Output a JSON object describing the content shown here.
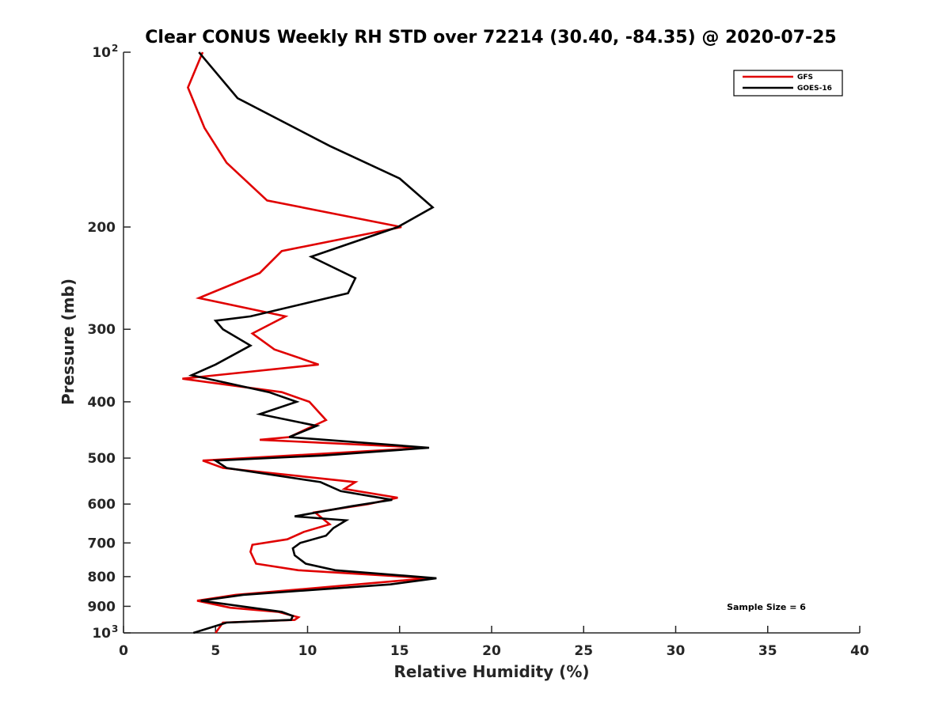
{
  "chart_data": {
    "type": "line",
    "title": "Clear CONUS Weekly RH STD over 72214 (30.40, -84.35) @ 2020-07-25",
    "xlabel": "Relative Humidity (%)",
    "ylabel": "Pressure (mb)",
    "xlim": [
      0,
      40
    ],
    "ylim": [
      100,
      1000
    ],
    "yscale": "log",
    "yreversed": true,
    "x_ticks": [
      "0",
      "5",
      "10",
      "15",
      "20",
      "25",
      "30",
      "35",
      "40"
    ],
    "y_ticks": [
      {
        "value": 100,
        "label": "10",
        "sup": "2"
      },
      {
        "value": 200,
        "label": "200"
      },
      {
        "value": 300,
        "label": "300"
      },
      {
        "value": 400,
        "label": "400"
      },
      {
        "value": 500,
        "label": "500"
      },
      {
        "value": 600,
        "label": "600"
      },
      {
        "value": 700,
        "label": "700"
      },
      {
        "value": 800,
        "label": "800"
      },
      {
        "value": 900,
        "label": "900"
      },
      {
        "value": 1000,
        "label": "10",
        "sup": "3"
      }
    ],
    "legend_position": "top-right",
    "annotation": "Sample Size = 6",
    "series": [
      {
        "name": "GFS",
        "color": "#e00000",
        "points": [
          [
            4.3,
            100
          ],
          [
            3.5,
            115
          ],
          [
            4.4,
            135
          ],
          [
            5.6,
            155
          ],
          [
            7.8,
            180
          ],
          [
            15.1,
            200
          ],
          [
            8.6,
            220
          ],
          [
            7.4,
            240
          ],
          [
            4.1,
            265
          ],
          [
            8.8,
            285
          ],
          [
            7.0,
            305
          ],
          [
            8.2,
            325
          ],
          [
            10.6,
            345
          ],
          [
            3.2,
            365
          ],
          [
            8.6,
            385
          ],
          [
            10.1,
            400
          ],
          [
            11.0,
            430
          ],
          [
            9.0,
            460
          ],
          [
            7.4,
            465
          ],
          [
            16.4,
            480
          ],
          [
            4.3,
            505
          ],
          [
            5.4,
            520
          ],
          [
            12.6,
            550
          ],
          [
            12.0,
            565
          ],
          [
            14.9,
            585
          ],
          [
            13.3,
            600
          ],
          [
            10.4,
            620
          ],
          [
            11.2,
            650
          ],
          [
            9.8,
            670
          ],
          [
            8.9,
            690
          ],
          [
            7.0,
            705
          ],
          [
            6.9,
            725
          ],
          [
            7.2,
            760
          ],
          [
            9.5,
            780
          ],
          [
            16.6,
            805
          ],
          [
            6.1,
            860
          ],
          [
            4.0,
            880
          ],
          [
            5.8,
            905
          ],
          [
            8.4,
            920
          ],
          [
            9.5,
            940
          ],
          [
            9.3,
            950
          ],
          [
            5.4,
            960
          ],
          [
            5.0,
            1000
          ]
        ]
      },
      {
        "name": "GOES-16",
        "color": "#000000",
        "points": [
          [
            4.1,
            100
          ],
          [
            6.2,
            120
          ],
          [
            11.2,
            145
          ],
          [
            15.0,
            165
          ],
          [
            16.8,
            185
          ],
          [
            14.9,
            200
          ],
          [
            10.2,
            225
          ],
          [
            12.6,
            245
          ],
          [
            12.2,
            260
          ],
          [
            6.9,
            285
          ],
          [
            5.0,
            290
          ],
          [
            5.4,
            300
          ],
          [
            6.9,
            320
          ],
          [
            5.0,
            345
          ],
          [
            3.7,
            360
          ],
          [
            7.9,
            385
          ],
          [
            9.4,
            400
          ],
          [
            7.4,
            420
          ],
          [
            10.5,
            440
          ],
          [
            9.0,
            460
          ],
          [
            16.6,
            480
          ],
          [
            10.8,
            495
          ],
          [
            5.0,
            505
          ],
          [
            5.6,
            520
          ],
          [
            10.7,
            550
          ],
          [
            11.8,
            570
          ],
          [
            14.6,
            590
          ],
          [
            12.4,
            605
          ],
          [
            9.3,
            630
          ],
          [
            12.1,
            640
          ],
          [
            11.4,
            660
          ],
          [
            11.0,
            680
          ],
          [
            9.6,
            700
          ],
          [
            9.2,
            715
          ],
          [
            9.3,
            735
          ],
          [
            9.9,
            760
          ],
          [
            11.5,
            780
          ],
          [
            17.0,
            805
          ],
          [
            14.5,
            825
          ],
          [
            6.5,
            860
          ],
          [
            4.2,
            880
          ],
          [
            8.6,
            920
          ],
          [
            9.2,
            935
          ],
          [
            9.1,
            950
          ],
          [
            5.6,
            960
          ],
          [
            3.8,
            1000
          ]
        ]
      }
    ]
  }
}
